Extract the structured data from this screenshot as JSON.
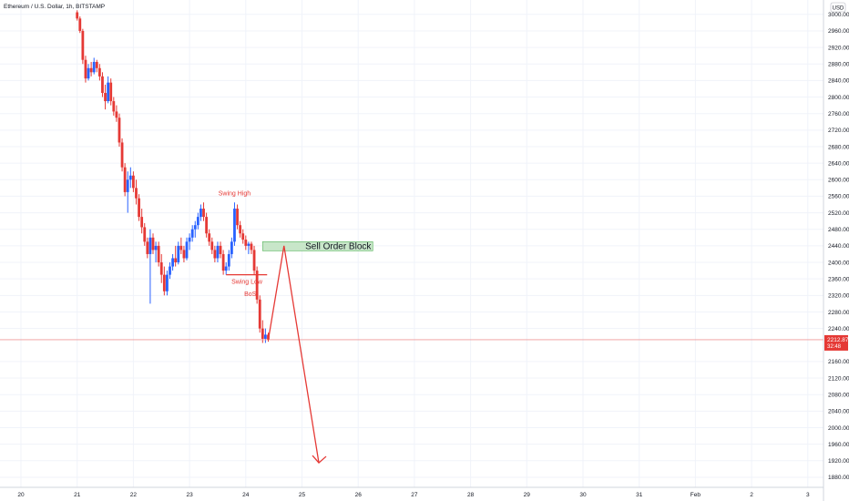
{
  "title": "Ethereum / U.S. Dollar, 1h, BITSTAMP",
  "currency_label": "USD",
  "price_tag": {
    "value": "2212.87",
    "countdown": "32:48"
  },
  "colors": {
    "up": "#2962ff",
    "down": "#e53935",
    "grid": "#f0f3fa",
    "annotation": "#e53935",
    "order_block_fill": "#c8e6c9",
    "order_block_border": "#66bb6a"
  },
  "annotations": {
    "swing_high": "Swing High",
    "swing_low": "Swing Low",
    "bos": "BoS",
    "order_block": "Sell Order Block"
  },
  "chart_data": {
    "type": "candlestick",
    "title": "Ethereum / U.S. Dollar, 1h, BITSTAMP",
    "xlabel": "",
    "ylabel": "",
    "ylim": [
      1850,
      3020
    ],
    "y_ticks": [
      3000,
      2960,
      2920,
      2880,
      2840,
      2800,
      2760,
      2720,
      2680,
      2640,
      2600,
      2560,
      2520,
      2480,
      2440,
      2400,
      2360,
      2320,
      2280,
      2240,
      2160,
      2120,
      2080,
      2040,
      2000,
      1960,
      1920,
      1880
    ],
    "x_ticks": [
      "20",
      "21",
      "22",
      "23",
      "24",
      "25",
      "26",
      "27",
      "28",
      "29",
      "30",
      "31",
      "Feb",
      "2",
      "3"
    ],
    "grid": true,
    "last_price": 2212.87,
    "candles": [
      {
        "x": 21.0,
        "o": 3005,
        "h": 3010,
        "l": 2985,
        "c": 2990
      },
      {
        "x": 21.05,
        "o": 2990,
        "h": 2995,
        "l": 2955,
        "c": 2960
      },
      {
        "x": 21.1,
        "o": 2960,
        "h": 2965,
        "l": 2880,
        "c": 2890
      },
      {
        "x": 21.15,
        "o": 2890,
        "h": 2900,
        "l": 2835,
        "c": 2845
      },
      {
        "x": 21.2,
        "o": 2845,
        "h": 2880,
        "l": 2840,
        "c": 2870
      },
      {
        "x": 21.25,
        "o": 2870,
        "h": 2885,
        "l": 2850,
        "c": 2860
      },
      {
        "x": 21.3,
        "o": 2860,
        "h": 2895,
        "l": 2855,
        "c": 2885
      },
      {
        "x": 21.35,
        "o": 2885,
        "h": 2890,
        "l": 2860,
        "c": 2870
      },
      {
        "x": 21.4,
        "o": 2870,
        "h": 2880,
        "l": 2840,
        "c": 2850
      },
      {
        "x": 21.45,
        "o": 2850,
        "h": 2860,
        "l": 2800,
        "c": 2810
      },
      {
        "x": 21.5,
        "o": 2810,
        "h": 2830,
        "l": 2770,
        "c": 2790
      },
      {
        "x": 21.55,
        "o": 2790,
        "h": 2850,
        "l": 2785,
        "c": 2835
      },
      {
        "x": 21.6,
        "o": 2835,
        "h": 2845,
        "l": 2780,
        "c": 2790
      },
      {
        "x": 21.65,
        "o": 2790,
        "h": 2800,
        "l": 2755,
        "c": 2765
      },
      {
        "x": 21.7,
        "o": 2765,
        "h": 2780,
        "l": 2740,
        "c": 2750
      },
      {
        "x": 21.75,
        "o": 2750,
        "h": 2760,
        "l": 2680,
        "c": 2690
      },
      {
        "x": 21.8,
        "o": 2690,
        "h": 2700,
        "l": 2620,
        "c": 2630
      },
      {
        "x": 21.85,
        "o": 2630,
        "h": 2640,
        "l": 2560,
        "c": 2570
      },
      {
        "x": 21.9,
        "o": 2570,
        "h": 2620,
        "l": 2520,
        "c": 2600
      },
      {
        "x": 21.95,
        "o": 2600,
        "h": 2630,
        "l": 2580,
        "c": 2610
      },
      {
        "x": 22.0,
        "o": 2610,
        "h": 2620,
        "l": 2570,
        "c": 2580
      },
      {
        "x": 22.05,
        "o": 2580,
        "h": 2600,
        "l": 2540,
        "c": 2555
      },
      {
        "x": 22.1,
        "o": 2555,
        "h": 2565,
        "l": 2500,
        "c": 2510
      },
      {
        "x": 22.15,
        "o": 2510,
        "h": 2530,
        "l": 2470,
        "c": 2485
      },
      {
        "x": 22.2,
        "o": 2485,
        "h": 2495,
        "l": 2440,
        "c": 2450
      },
      {
        "x": 22.25,
        "o": 2450,
        "h": 2460,
        "l": 2410,
        "c": 2420
      },
      {
        "x": 22.3,
        "o": 2420,
        "h": 2480,
        "l": 2300,
        "c": 2460
      },
      {
        "x": 22.35,
        "o": 2460,
        "h": 2470,
        "l": 2420,
        "c": 2430
      },
      {
        "x": 22.4,
        "o": 2430,
        "h": 2450,
        "l": 2400,
        "c": 2440
      },
      {
        "x": 22.45,
        "o": 2440,
        "h": 2450,
        "l": 2390,
        "c": 2400
      },
      {
        "x": 22.5,
        "o": 2400,
        "h": 2420,
        "l": 2350,
        "c": 2370
      },
      {
        "x": 22.55,
        "o": 2370,
        "h": 2390,
        "l": 2320,
        "c": 2330
      },
      {
        "x": 22.6,
        "o": 2330,
        "h": 2380,
        "l": 2320,
        "c": 2370
      },
      {
        "x": 22.65,
        "o": 2370,
        "h": 2400,
        "l": 2360,
        "c": 2390
      },
      {
        "x": 22.7,
        "o": 2390,
        "h": 2420,
        "l": 2380,
        "c": 2410
      },
      {
        "x": 22.75,
        "o": 2410,
        "h": 2440,
        "l": 2390,
        "c": 2400
      },
      {
        "x": 22.8,
        "o": 2400,
        "h": 2450,
        "l": 2395,
        "c": 2440
      },
      {
        "x": 22.85,
        "o": 2440,
        "h": 2460,
        "l": 2420,
        "c": 2430
      },
      {
        "x": 22.9,
        "o": 2430,
        "h": 2440,
        "l": 2400,
        "c": 2410
      },
      {
        "x": 22.95,
        "o": 2410,
        "h": 2460,
        "l": 2405,
        "c": 2450
      },
      {
        "x": 23.0,
        "o": 2450,
        "h": 2470,
        "l": 2430,
        "c": 2460
      },
      {
        "x": 23.05,
        "o": 2460,
        "h": 2490,
        "l": 2450,
        "c": 2480
      },
      {
        "x": 23.1,
        "o": 2480,
        "h": 2500,
        "l": 2460,
        "c": 2490
      },
      {
        "x": 23.15,
        "o": 2490,
        "h": 2520,
        "l": 2480,
        "c": 2510
      },
      {
        "x": 23.2,
        "o": 2510,
        "h": 2540,
        "l": 2500,
        "c": 2530
      },
      {
        "x": 23.25,
        "o": 2530,
        "h": 2545,
        "l": 2500,
        "c": 2510
      },
      {
        "x": 23.3,
        "o": 2510,
        "h": 2520,
        "l": 2460,
        "c": 2470
      },
      {
        "x": 23.35,
        "o": 2470,
        "h": 2480,
        "l": 2440,
        "c": 2450
      },
      {
        "x": 23.4,
        "o": 2450,
        "h": 2460,
        "l": 2420,
        "c": 2430
      },
      {
        "x": 23.45,
        "o": 2430,
        "h": 2440,
        "l": 2400,
        "c": 2410
      },
      {
        "x": 23.5,
        "o": 2410,
        "h": 2450,
        "l": 2400,
        "c": 2440
      },
      {
        "x": 23.55,
        "o": 2440,
        "h": 2450,
        "l": 2410,
        "c": 2420
      },
      {
        "x": 23.6,
        "o": 2420,
        "h": 2430,
        "l": 2370,
        "c": 2380
      },
      {
        "x": 23.65,
        "o": 2380,
        "h": 2400,
        "l": 2370,
        "c": 2390
      },
      {
        "x": 23.7,
        "o": 2390,
        "h": 2430,
        "l": 2380,
        "c": 2420
      },
      {
        "x": 23.75,
        "o": 2420,
        "h": 2460,
        "l": 2410,
        "c": 2450
      },
      {
        "x": 23.8,
        "o": 2450,
        "h": 2545,
        "l": 2440,
        "c": 2530
      },
      {
        "x": 23.85,
        "o": 2530,
        "h": 2540,
        "l": 2480,
        "c": 2490
      },
      {
        "x": 23.9,
        "o": 2490,
        "h": 2500,
        "l": 2460,
        "c": 2470
      },
      {
        "x": 23.95,
        "o": 2470,
        "h": 2480,
        "l": 2445,
        "c": 2455
      },
      {
        "x": 24.0,
        "o": 2455,
        "h": 2465,
        "l": 2430,
        "c": 2440
      },
      {
        "x": 24.05,
        "o": 2440,
        "h": 2450,
        "l": 2420,
        "c": 2445
      },
      {
        "x": 24.1,
        "o": 2445,
        "h": 2450,
        "l": 2420,
        "c": 2430
      },
      {
        "x": 24.15,
        "o": 2430,
        "h": 2440,
        "l": 2370,
        "c": 2380
      },
      {
        "x": 24.2,
        "o": 2380,
        "h": 2390,
        "l": 2300,
        "c": 2310
      },
      {
        "x": 24.25,
        "o": 2310,
        "h": 2320,
        "l": 2230,
        "c": 2240
      },
      {
        "x": 24.3,
        "o": 2240,
        "h": 2260,
        "l": 2205,
        "c": 2215
      },
      {
        "x": 24.35,
        "o": 2215,
        "h": 2240,
        "l": 2205,
        "c": 2225
      },
      {
        "x": 24.4,
        "o": 2225,
        "h": 2230,
        "l": 2208,
        "c": 2212.87
      }
    ]
  }
}
